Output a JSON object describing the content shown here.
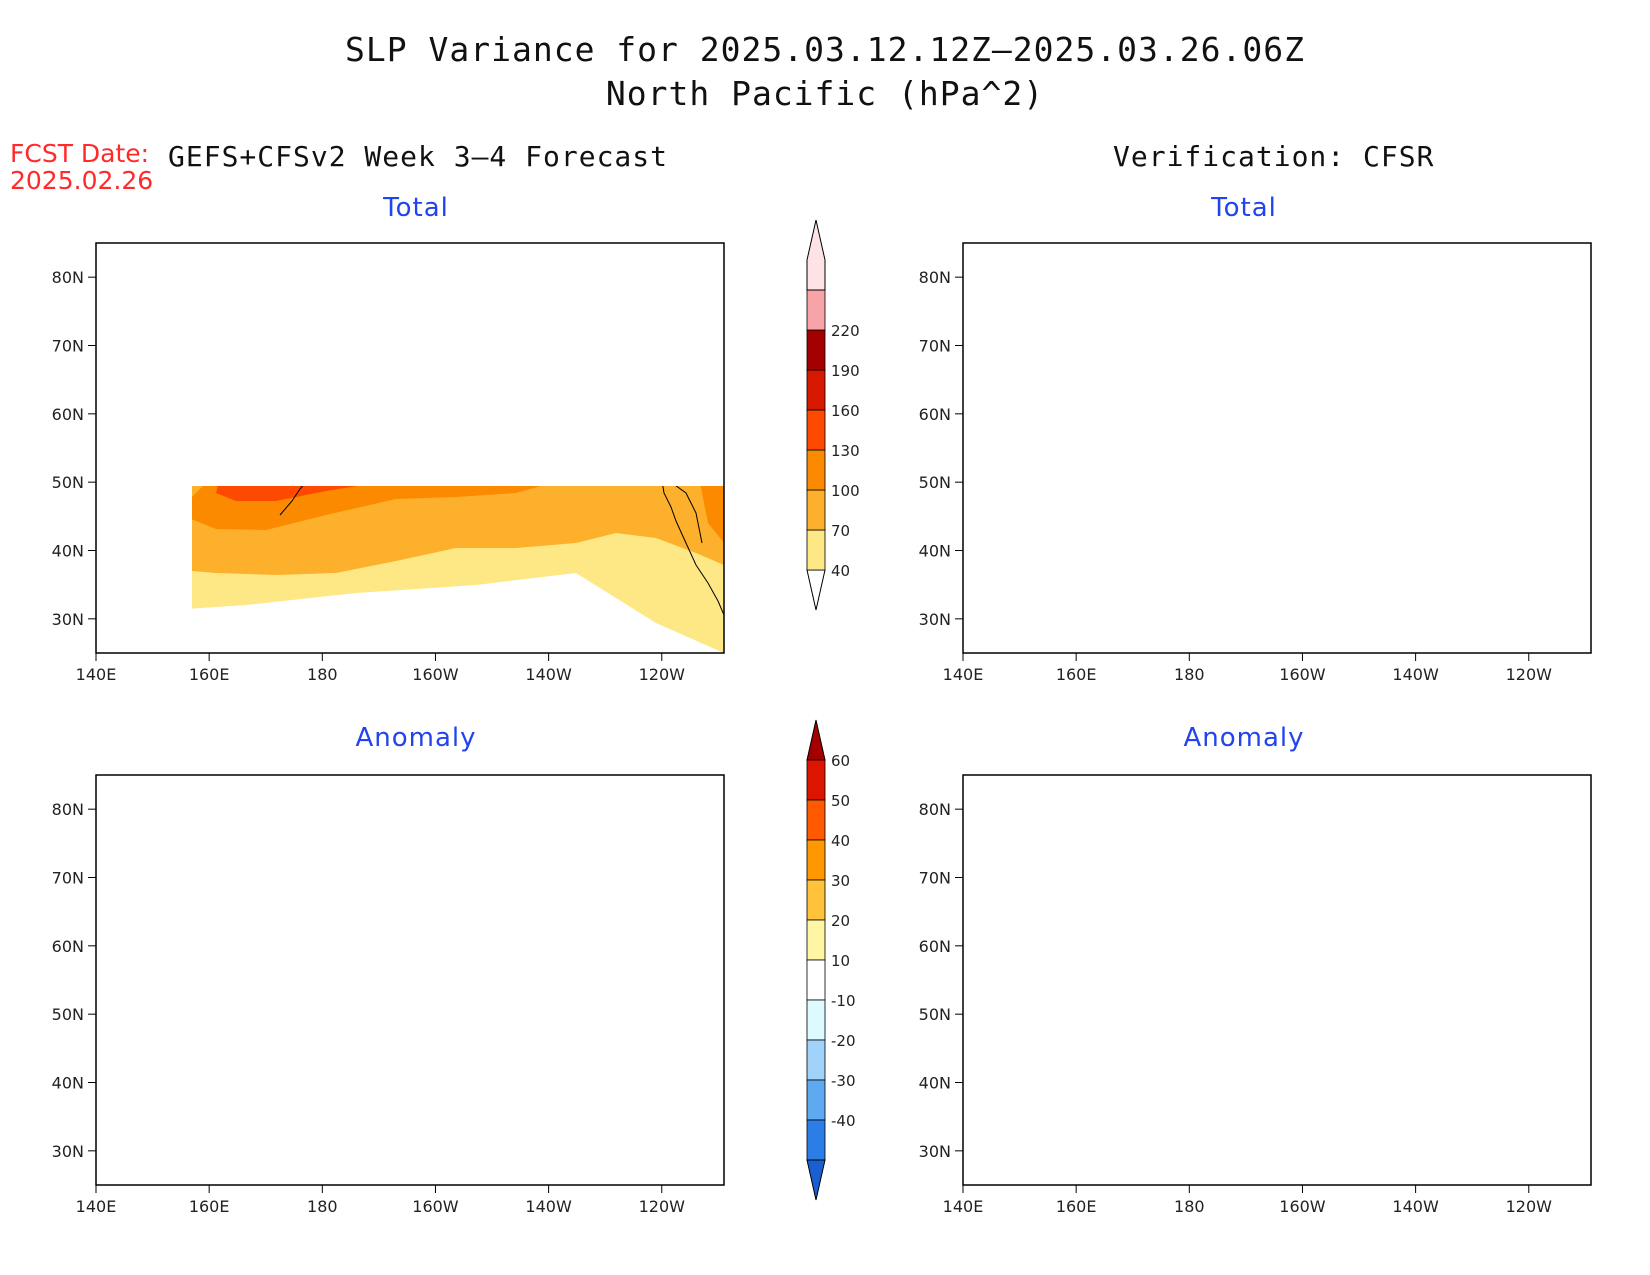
{
  "title": {
    "line1": "SLP Variance for 2025.03.12.12Z–2025.03.26.06Z",
    "line2": "North Pacific (hPa^2)"
  },
  "fcst": {
    "label": "FCST Date:",
    "date": "2025.02.26"
  },
  "left_heading": "GEFS+CFSv2 Week 3–4 Forecast",
  "right_heading": "Verification: CFSR",
  "axes": {
    "lat_labels": [
      "80N",
      "70N",
      "60N",
      "50N",
      "40N",
      "30N"
    ],
    "lat_values": [
      80,
      70,
      60,
      50,
      40,
      30
    ],
    "lon_labels": [
      "140E",
      "160E",
      "180",
      "160W",
      "140W",
      "120W"
    ],
    "lon_values": [
      140,
      160,
      180,
      200,
      220,
      240
    ],
    "lon_range": [
      140,
      251
    ],
    "lat_range": [
      25,
      85
    ]
  },
  "panels": [
    {
      "id": "forecast-total",
      "title": "Total",
      "type": "total"
    },
    {
      "id": "verification-total",
      "title": "Total",
      "type": "total"
    },
    {
      "id": "forecast-anomaly",
      "title": "Anomaly",
      "type": "anomaly"
    },
    {
      "id": "verification-anomaly",
      "title": "Anomaly",
      "type": "anomaly"
    }
  ],
  "colorbar_total": {
    "levels": [
      "40",
      "70",
      "100",
      "130",
      "160",
      "190",
      "220"
    ],
    "colors": [
      "#fee785",
      "#fdb02c",
      "#fc8a00",
      "#fd4a00",
      "#d71800",
      "#a50000",
      "#f6a4a8",
      "#fde3e5"
    ]
  },
  "colorbar_anomaly": {
    "levels": [
      "60",
      "50",
      "40",
      "30",
      "20",
      "10",
      "-10",
      "-20",
      "-30",
      "-40"
    ],
    "colors_top_to_bottom": [
      "#a50000",
      "#dc1400",
      "#ff5a00",
      "#ff9800",
      "#ffc23a",
      "#fff5a4",
      "#ffffff",
      "#ddfbff",
      "#a0d2fa",
      "#5ea9f0",
      "#2a7ee6",
      "#1a5fd2"
    ]
  }
}
